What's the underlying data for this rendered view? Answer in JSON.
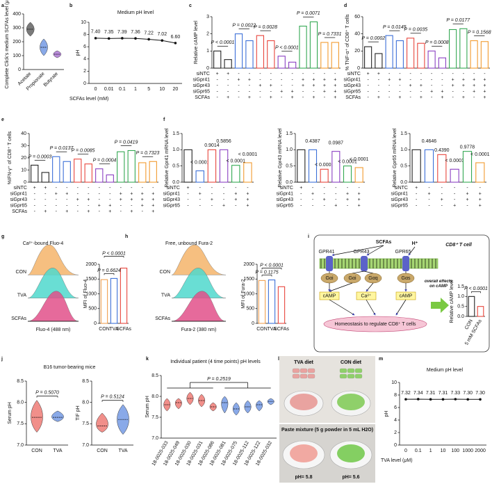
{
  "chart_data": [
    {
      "type": "violin",
      "label": "a",
      "ylabel": "Complete Click's medium SCFAs level (μM)",
      "categories": [
        "Acetate",
        "Propionate",
        "Butyrate"
      ],
      "values": [
        290,
        160,
        110
      ],
      "ranges": [
        [
          240,
          340
        ],
        [
          100,
          220
        ],
        [
          85,
          135
        ]
      ],
      "colors": [
        "#222222",
        "#3b6fd8",
        "#8a3fc2"
      ],
      "ylim": [
        0,
        400
      ],
      "yticks": [
        0,
        100,
        200,
        300,
        400
      ]
    },
    {
      "type": "line",
      "label": "b",
      "title": "Medium pH level",
      "xlabel": "SCFAs level (mM)",
      "ylabel": "pH",
      "categories": [
        "0",
        "0.01",
        "0.1",
        "1",
        "5",
        "10",
        "20"
      ],
      "values": [
        7.4,
        7.35,
        7.39,
        7.36,
        7.22,
        7.02,
        6.6
      ],
      "value_labels": [
        "7.40",
        "7.35",
        "7.39",
        "7.36",
        "7.22",
        "7.02",
        "6.60"
      ],
      "color": "#111111",
      "ylim": [
        0,
        10
      ],
      "yticks": [
        0,
        2,
        4,
        6,
        8,
        10
      ]
    },
    {
      "type": "bar",
      "label": "c",
      "ylabel": "Relative cAMP level",
      "values": [
        1.0,
        0.5,
        2.0,
        1.6,
        1.9,
        1.6,
        0.7,
        0.35,
        2.45,
        2.7,
        1.5,
        1.5
      ],
      "colors": [
        "#222222",
        "#3b6fd8",
        "#e8453c",
        "#8a3fc2",
        "#33a852",
        "#f29a2e"
      ],
      "ylim": [
        0,
        3
      ],
      "yticks": [
        0,
        1,
        2,
        3
      ],
      "pvalues": [
        "P < 0.0001",
        "P = 0.0022",
        "P = 0.0028",
        "P < 0.0001",
        "P = 0.0071",
        "P = 0.7331"
      ],
      "rows": [
        {
          "name": "siNTC",
          "marks": [
            "+",
            "+",
            "-",
            "-",
            "-",
            "-",
            "-",
            "-",
            "-",
            "-",
            "-",
            "-"
          ]
        },
        {
          "name": "siGpr41",
          "marks": [
            "-",
            "-",
            "+",
            "+",
            "-",
            "-",
            "-",
            "-",
            "+",
            "+",
            "+",
            "+"
          ]
        },
        {
          "name": "siGpr43",
          "marks": [
            "-",
            "-",
            "-",
            "-",
            "+",
            "+",
            "-",
            "-",
            "+",
            "+",
            "+",
            "+"
          ]
        },
        {
          "name": "siGpr65",
          "marks": [
            "-",
            "-",
            "-",
            "-",
            "-",
            "-",
            "+",
            "+",
            "-",
            "-",
            "+",
            "+"
          ]
        },
        {
          "name": "SCFAs",
          "marks": [
            "-",
            "+",
            "-",
            "+",
            "-",
            "+",
            "-",
            "+",
            "-",
            "+",
            "-",
            "+"
          ]
        }
      ]
    },
    {
      "type": "bar",
      "label": "d",
      "ylabel": "% TNF-α⁺ of CD8⁺ T cells",
      "values": [
        25,
        17,
        38,
        32,
        35,
        29,
        20,
        12,
        45,
        46,
        32,
        31
      ],
      "colors": [
        "#222222",
        "#3b6fd8",
        "#e8453c",
        "#8a3fc2",
        "#33a852",
        "#f29a2e"
      ],
      "ylim": [
        0,
        60
      ],
      "yticks": [
        0,
        20,
        40,
        60
      ],
      "pvalues": [
        "P = 0.0002",
        "P = 0.0145",
        "P = 0.0035",
        "P = 0.0008",
        "P = 0.0177",
        "P = 0.1568"
      ],
      "rows": [
        {
          "name": "siNTC",
          "marks": [
            "+",
            "+",
            "-",
            "-",
            "-",
            "-",
            "-",
            "-",
            "-",
            "-",
            "-",
            "-"
          ]
        },
        {
          "name": "siGpr41",
          "marks": [
            "-",
            "-",
            "+",
            "+",
            "-",
            "-",
            "-",
            "-",
            "+",
            "+",
            "+",
            "+"
          ]
        },
        {
          "name": "siGpr43",
          "marks": [
            "-",
            "-",
            "-",
            "-",
            "+",
            "+",
            "-",
            "-",
            "+",
            "+",
            "+",
            "+"
          ]
        },
        {
          "name": "siGpr65",
          "marks": [
            "-",
            "-",
            "-",
            "-",
            "-",
            "-",
            "+",
            "+",
            "-",
            "-",
            "+",
            "+"
          ]
        },
        {
          "name": "SCFAs",
          "marks": [
            "-",
            "+",
            "-",
            "+",
            "-",
            "+",
            "-",
            "+",
            "-",
            "+",
            "-",
            "+"
          ]
        }
      ]
    },
    {
      "type": "bar",
      "label": "e",
      "ylabel": "%IFN-γ⁺ of CD8⁺ T cells",
      "values": [
        14,
        8,
        21,
        17,
        19,
        15,
        11,
        6,
        25,
        26,
        16,
        17
      ],
      "colors": [
        "#222222",
        "#3b6fd8",
        "#e8453c",
        "#8a3fc2",
        "#33a852",
        "#f29a2e"
      ],
      "ylim": [
        0,
        40
      ],
      "yticks": [
        0,
        10,
        20,
        30,
        40
      ],
      "pvalues": [
        "P = 0.0003",
        "P = 0.0137",
        "P = 0.0085",
        "P = 0.0004",
        "P = 0.0419",
        "P = 0.7323"
      ],
      "rows": [
        {
          "name": "siNTC",
          "marks": [
            "+",
            "+",
            "-",
            "-",
            "-",
            "-",
            "-",
            "-",
            "-",
            "-",
            "-",
            "-"
          ]
        },
        {
          "name": "siGpr41",
          "marks": [
            "-",
            "-",
            "+",
            "+",
            "-",
            "-",
            "-",
            "-",
            "+",
            "+",
            "+",
            "+"
          ]
        },
        {
          "name": "siGpr43",
          "marks": [
            "-",
            "-",
            "-",
            "-",
            "+",
            "+",
            "-",
            "-",
            "+",
            "+",
            "+",
            "+"
          ]
        },
        {
          "name": "siGpr65",
          "marks": [
            "-",
            "-",
            "-",
            "-",
            "-",
            "-",
            "+",
            "+",
            "-",
            "-",
            "+",
            "+"
          ]
        },
        {
          "name": "SCFAs",
          "marks": [
            "-",
            "+",
            "-",
            "+",
            "-",
            "+",
            "-",
            "+",
            "-",
            "+",
            "-",
            "+"
          ]
        }
      ]
    },
    {
      "type": "bar",
      "label": "f",
      "ylabel": "Relative Gpr41 mRNA level",
      "values": [
        1.0,
        0.35,
        1.0,
        1.0,
        0.52,
        0.6
      ],
      "colors": [
        "#222222",
        "#3b6fd8",
        "#e8453c",
        "#8a3fc2",
        "#33a852",
        "#f29a2e"
      ],
      "ylim": [
        0,
        1.5
      ],
      "yticks": [
        {
          "value": 0,
          "label": "0.0"
        },
        0.5,
        {
          "value": 1,
          "label": "1.0"
        },
        1.5
      ],
      "bar_labels": [
        null,
        "< 0.0001",
        "0.9014",
        "0.5856",
        "< 0.0001",
        "< 0.0001"
      ],
      "rows": [
        {
          "name": "siNTC",
          "marks": [
            "+",
            "-",
            "-",
            "-",
            "-",
            "-"
          ]
        },
        {
          "name": "siGpr41",
          "marks": [
            "-",
            "+",
            "-",
            "-",
            "+",
            "+"
          ]
        },
        {
          "name": "siGpr43",
          "marks": [
            "-",
            "-",
            "+",
            "-",
            "+",
            "+"
          ]
        },
        {
          "name": "siGpr65",
          "marks": [
            "-",
            "-",
            "-",
            "+",
            "-",
            "+"
          ]
        }
      ]
    },
    {
      "type": "bar",
      "ylabel": "Relative Gpr43 mRNA level",
      "values": [
        1.0,
        1.0,
        0.4,
        0.95,
        0.5,
        0.45
      ],
      "colors": [
        "#222222",
        "#3b6fd8",
        "#e8453c",
        "#8a3fc2",
        "#33a852",
        "#f29a2e"
      ],
      "ylim": [
        0,
        1.5
      ],
      "yticks": [
        {
          "value": 0,
          "label": "0.0"
        },
        0.5,
        {
          "value": 1,
          "label": "1.0"
        },
        1.5
      ],
      "bar_labels": [
        null,
        "0.4387",
        "< 0.0001",
        "0.0987",
        "< 0.0001",
        "< 0.0001"
      ],
      "rows": [
        {
          "name": "siNTC",
          "marks": [
            "+",
            "-",
            "-",
            "-",
            "-",
            "-"
          ]
        },
        {
          "name": "siGpr41",
          "marks": [
            "-",
            "+",
            "-",
            "-",
            "+",
            "+"
          ]
        },
        {
          "name": "siGpr43",
          "marks": [
            "-",
            "-",
            "+",
            "-",
            "+",
            "+"
          ]
        },
        {
          "name": "siGpr65",
          "marks": [
            "-",
            "-",
            "-",
            "+",
            "-",
            "+"
          ]
        }
      ]
    },
    {
      "type": "bar",
      "ylabel": "Relative Gpr65 mRNA level",
      "values": [
        1.0,
        1.0,
        0.85,
        0.4,
        0.95,
        0.6
      ],
      "colors": [
        "#222222",
        "#3b6fd8",
        "#e8453c",
        "#8a3fc2",
        "#33a852",
        "#f29a2e"
      ],
      "ylim": [
        0,
        1.5
      ],
      "yticks": [
        {
          "value": 0,
          "label": "0.0"
        },
        0.5,
        {
          "value": 1,
          "label": "1.0"
        },
        1.5
      ],
      "bar_labels": [
        null,
        "0.4646",
        "0.4390",
        "< 0.0001",
        "0.9778",
        "< 0.0001"
      ],
      "rows": [
        {
          "name": "siNTC",
          "marks": [
            "+",
            "-",
            "-",
            "-",
            "-",
            "-"
          ]
        },
        {
          "name": "siGpr41",
          "marks": [
            "-",
            "+",
            "-",
            "-",
            "+",
            "+"
          ]
        },
        {
          "name": "siGpr43",
          "marks": [
            "-",
            "-",
            "+",
            "-",
            "+",
            "+"
          ]
        },
        {
          "name": "siGpr65",
          "marks": [
            "-",
            "-",
            "-",
            "+",
            "-",
            "+"
          ]
        }
      ]
    },
    {
      "type": "flow",
      "label": "g",
      "title": "Ca²⁺-bound Fluo-4",
      "xlabel": "Fluo-4 (488 nm)",
      "categories": [
        "CON",
        "TVA",
        "SCFAs"
      ],
      "colors": [
        "#f5b46a",
        "#4fd8cc",
        "#e2508a"
      ]
    },
    {
      "type": "bar",
      "ylabel": "MFI of Fluo-4",
      "categories": [
        "CON",
        "TVA",
        "SCFAs"
      ],
      "values": [
        1480,
        1520,
        1870
      ],
      "colors": [
        "#f0a050",
        "#3b6fd8",
        "#e8453c"
      ],
      "ylim": [
        0,
        2000
      ],
      "yticks": [
        0,
        500,
        1000,
        1500,
        2000
      ],
      "comparisons": [
        "P = 0.6624",
        "P < 0.0001"
      ]
    },
    {
      "type": "flow",
      "label": "h",
      "title": "Free, unbound Fura-2",
      "xlabel": "Fura-2 (380 nm)",
      "categories": [
        "CON",
        "TVA",
        "SCFAs"
      ],
      "colors": [
        "#f5b46a",
        "#4fd8cc",
        "#e2508a"
      ]
    },
    {
      "type": "bar",
      "ylabel": "MFI of Fura-2",
      "categories": [
        "CON",
        "TVA",
        "SCFAs"
      ],
      "values": [
        1450,
        1470,
        1240
      ],
      "colors": [
        "#f0a050",
        "#3b6fd8",
        "#e8453c"
      ],
      "ylim": [
        0,
        2000
      ],
      "yticks": [
        0,
        500,
        1000,
        1500,
        2000
      ],
      "comparisons": [
        "P = 0.1175",
        "P < 0.0001"
      ]
    },
    {
      "type": "diagram",
      "label": "i",
      "cell": "CD8⁺ T cell",
      "ligands": [
        "SCFAs",
        "H⁺"
      ],
      "receptors": [
        "GPR41",
        "GPR43",
        "GPR65"
      ],
      "proteins": [
        "Gαi",
        "Gαi",
        "Gαq",
        "Gαs"
      ],
      "messengers": [
        "cAMP",
        "Ca²⁺",
        "cAMP"
      ],
      "outcome": "Homeostasis to regulate CD8⁺ T cells",
      "effect": "overall effects on cAMP"
    },
    {
      "type": "bar",
      "ylabel": "Relative cAMP level",
      "categories": [
        "CON",
        "5 mM SCFAs"
      ],
      "values": [
        1.0,
        0.5
      ],
      "colors": [
        "#222222",
        "#e8453c"
      ],
      "ylim": [
        0,
        1.5
      ],
      "yticks": [
        {
          "value": 0,
          "label": "0.0"
        },
        0.5,
        {
          "value": 1,
          "label": "1.0"
        },
        1.5
      ],
      "comparisons": [
        "P < 0.0001"
      ]
    },
    {
      "type": "violin",
      "label": "j",
      "title": "B16 tumor-bearing mice",
      "ylabel": "Serum pH",
      "categories": [
        "CON",
        "TVA"
      ],
      "values": [
        7.65,
        7.65
      ],
      "ranges": [
        [
          7.3,
          8.05
        ],
        [
          7.55,
          7.8
        ]
      ],
      "colors": [
        "#e8453c",
        "#3b6fd8"
      ],
      "ylim": [
        7,
        8.5
      ],
      "yticks": [
        {
          "value": 7,
          "label": "7.0"
        },
        7.5,
        {
          "value": 8,
          "label": "8.0"
        },
        8.5
      ],
      "comparisons": [
        "P = 0.5070"
      ]
    },
    {
      "type": "violin",
      "ylabel": "TIF pH",
      "categories": [
        "CON",
        "TVA"
      ],
      "values": [
        7.45,
        7.6
      ],
      "ranges": [
        [
          7.3,
          7.75
        ],
        [
          7.25,
          7.95
        ]
      ],
      "colors": [
        "#e8453c",
        "#3b6fd8"
      ],
      "ylim": [
        7,
        8.5
      ],
      "yticks": [
        {
          "value": 7,
          "label": "7.0"
        },
        7.5,
        {
          "value": 8,
          "label": "8.0"
        },
        8.5
      ],
      "comparisons": [
        "P = 0.5124"
      ]
    },
    {
      "type": "violin",
      "label": "k",
      "title": "Individual patient (4 time points) pH levels",
      "ylabel": "Serum pH",
      "categories": [
        "18-0025-033",
        "18-0025-049",
        "18-0025-030",
        "18-0025-031",
        "18-0025-086",
        "18-0025-081",
        "18-0025-075",
        "18-0025-112",
        "18-0025-122",
        "18-0025-032"
      ],
      "values": [
        7.8,
        7.85,
        7.95,
        7.9,
        7.75,
        7.85,
        7.7,
        7.75,
        7.8,
        7.88
      ],
      "ranges": [
        [
          7.65,
          7.95
        ],
        [
          7.7,
          7.95
        ],
        [
          7.8,
          8.1
        ],
        [
          7.75,
          8.05
        ],
        [
          7.65,
          7.85
        ],
        [
          7.6,
          8.0
        ],
        [
          7.55,
          7.85
        ],
        [
          7.6,
          7.9
        ],
        [
          7.65,
          7.9
        ],
        [
          7.8,
          7.95
        ]
      ],
      "colors": [
        "#e8453c",
        "#3b6fd8"
      ],
      "ylim": [
        7,
        8.5
      ],
      "yticks": [
        {
          "value": 7,
          "label": "7.0"
        },
        7.5,
        {
          "value": 8,
          "label": "8.0"
        },
        8.5
      ],
      "comparisons": [
        "P = 0.2519"
      ]
    },
    {
      "type": "photo",
      "label": "l",
      "diets": [
        "TVA diet",
        "CON diet"
      ],
      "note": "Paste mixture (5 g powder in 5 mL H2O)",
      "ph_labels": [
        "pH= 5.8",
        "pH= 5.6"
      ]
    },
    {
      "type": "line",
      "label": "m",
      "title": "Medium pH level",
      "xlabel": "TVA level (μM)",
      "ylabel": "pH",
      "categories": [
        "0",
        "0.1",
        "1",
        "10",
        "100",
        "1000",
        "2000"
      ],
      "values": [
        7.32,
        7.34,
        7.31,
        7.31,
        7.33,
        7.3,
        7.3
      ],
      "value_labels": [
        "7.32",
        "7.34",
        "7.31",
        "7.31",
        "7.33",
        "7.30",
        "7.30"
      ],
      "color": "#111111",
      "ylim": [
        0,
        10
      ],
      "yticks": [
        0,
        2,
        4,
        6,
        8,
        10
      ]
    }
  ]
}
